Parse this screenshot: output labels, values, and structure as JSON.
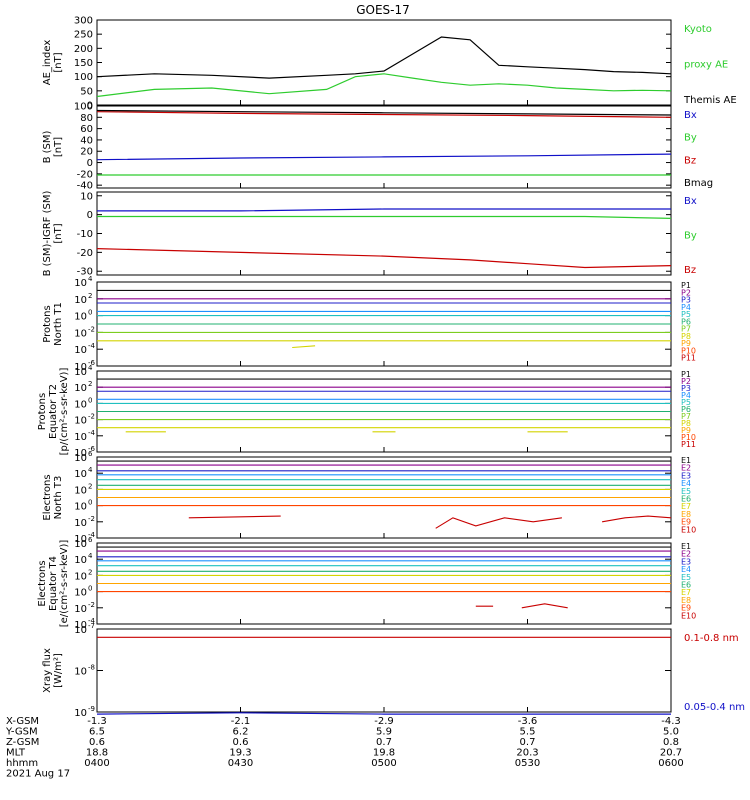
{
  "title": "GOES-17",
  "colors": {
    "black": "#000000",
    "green": "#2ecc2e",
    "blue": "#1010c8",
    "red": "#c80000",
    "proton_ch": [
      "#101010",
      "#8b008b",
      "#1e1ec8",
      "#1e90ff",
      "#20c0c0",
      "#20b070",
      "#7ccd20",
      "#d4d400",
      "#ffa500",
      "#ff4500",
      "#c80000",
      "#8b0000"
    ],
    "electron_ch": [
      "#101010",
      "#8b008b",
      "#1e1ec8",
      "#1e90ff",
      "#20c0c0",
      "#20b070",
      "#d4d400",
      "#ffa500",
      "#ff4500",
      "#c80000"
    ]
  },
  "chart_data": [
    {
      "type": "line",
      "ylabel": [
        "AE_index",
        "[nT]"
      ],
      "ylim": [
        0,
        300
      ],
      "yticks": [
        "300",
        "250",
        "200",
        "150",
        "100",
        "50",
        "0"
      ],
      "x": [
        0,
        0.1,
        0.2,
        0.3,
        0.4,
        0.45,
        0.5,
        0.55,
        0.6,
        0.65,
        0.7,
        0.75,
        0.8,
        0.85,
        0.9,
        0.95,
        1
      ],
      "series": [
        {
          "name": "Themis AE",
          "color": "black",
          "values": [
            100,
            110,
            105,
            95,
            105,
            110,
            120,
            180,
            240,
            230,
            140,
            135,
            130,
            125,
            118,
            115,
            110
          ]
        },
        {
          "name": "Kyoto proxy AE",
          "color": "green",
          "values": [
            30,
            55,
            60,
            40,
            55,
            100,
            110,
            95,
            80,
            70,
            75,
            70,
            60,
            55,
            50,
            52,
            50
          ]
        }
      ],
      "legend": [
        {
          "text": "Kyoto",
          "color": "green"
        },
        {
          "text": "proxy AE",
          "color": "green"
        },
        {
          "text": "Themis AE",
          "color": "black"
        }
      ]
    },
    {
      "type": "line",
      "ylabel": [
        "B (SM)",
        "[nT]"
      ],
      "ylim": [
        -45,
        100
      ],
      "yticks": [
        "100",
        "80",
        "60",
        "40",
        "20",
        "0",
        "-20",
        "-40"
      ],
      "x": [
        0,
        0.25,
        0.5,
        0.75,
        1
      ],
      "series": [
        {
          "name": "Bx",
          "color": "blue",
          "values": [
            5,
            8,
            10,
            12,
            15
          ]
        },
        {
          "name": "By",
          "color": "green",
          "values": [
            -22,
            -22,
            -22,
            -22,
            -22
          ]
        },
        {
          "name": "Bz",
          "color": "red",
          "values": [
            90,
            87,
            85,
            83,
            80
          ]
        },
        {
          "name": "Bmag",
          "color": "black",
          "values": [
            92,
            90,
            88,
            86,
            84
          ]
        }
      ],
      "legend": [
        {
          "text": "Bx",
          "color": "blue"
        },
        {
          "text": "By",
          "color": "green"
        },
        {
          "text": "Bz",
          "color": "red"
        },
        {
          "text": "Bmag",
          "color": "black"
        }
      ]
    },
    {
      "type": "line",
      "ylabel": [
        "B (SM)-IGRF (SM)",
        "[nT]"
      ],
      "ylim": [
        -32,
        12
      ],
      "yticks": [
        "10",
        "0",
        "-10",
        "-20",
        "-30"
      ],
      "x": [
        0,
        0.25,
        0.5,
        0.65,
        0.75,
        0.85,
        1
      ],
      "series": [
        {
          "name": "Bx",
          "color": "blue",
          "values": [
            2,
            2,
            3,
            3,
            3,
            3,
            3
          ]
        },
        {
          "name": "By",
          "color": "green",
          "values": [
            -1,
            -1,
            -1,
            -1,
            -1,
            -1,
            -2
          ]
        },
        {
          "name": "Bz",
          "color": "red",
          "values": [
            -18,
            -20,
            -22,
            -24,
            -26,
            -28,
            -27
          ]
        }
      ],
      "legend": [
        {
          "text": "Bx",
          "color": "blue"
        },
        {
          "text": "By",
          "color": "green"
        },
        {
          "text": "Bz",
          "color": "red"
        }
      ]
    },
    {
      "type": "line",
      "log": true,
      "ylabel": [
        "Protons",
        "North T1"
      ],
      "ylim_log": [
        -6,
        4
      ],
      "ytick_exp": [
        4,
        2,
        0,
        -2,
        -4,
        -6
      ],
      "channels": [
        "P1",
        "P2",
        "P3",
        "P4",
        "P5",
        "P6",
        "P7",
        "P8",
        "P9",
        "P10",
        "P11"
      ],
      "channel_log_levels": [
        3,
        2,
        1.5,
        0.5,
        0,
        -1,
        -2,
        -3
      ],
      "segments": [
        {
          "x": [
            0.34,
            0.38
          ],
          "log": [
            -3.8,
            -3.6
          ],
          "channel": 7
        }
      ]
    },
    {
      "type": "line",
      "log": true,
      "ylabel": [
        "Protons",
        "Equator T2",
        "[p/(cm²-s-sr-keV)]"
      ],
      "ylim_log": [
        -6,
        4
      ],
      "ytick_exp": [
        4,
        2,
        0,
        -2,
        -4,
        -6
      ],
      "channels": [
        "P1",
        "P2",
        "P3",
        "P4",
        "P5",
        "P6",
        "P7",
        "P8",
        "P9",
        "P10",
        "P11"
      ],
      "channel_log_levels": [
        3,
        2,
        1.5,
        0.5,
        0,
        -1,
        -2,
        -3
      ],
      "segments": [
        {
          "x": [
            0.05,
            0.12
          ],
          "log": [
            -3.5,
            -3.5
          ],
          "channel": 7
        },
        {
          "x": [
            0.48,
            0.52
          ],
          "log": [
            -3.5,
            -3.5
          ],
          "channel": 7
        },
        {
          "x": [
            0.75,
            0.82
          ],
          "log": [
            -3.5,
            -3.5
          ],
          "channel": 7
        }
      ]
    },
    {
      "type": "line",
      "log": true,
      "ylabel": [
        "Electrons",
        "North T3"
      ],
      "ylim_log": [
        -4,
        6
      ],
      "ytick_exp": [
        6,
        4,
        2,
        0,
        -2,
        -4
      ],
      "channels": [
        "E1",
        "E2",
        "E3",
        "E4",
        "E5",
        "E6",
        "E7",
        "E8",
        "E9",
        "E10"
      ],
      "channel_log_levels": [
        5.5,
        5,
        4.3,
        3.8,
        3.2,
        2.5,
        2,
        1,
        0
      ],
      "segments": [
        {
          "x": [
            0.16,
            0.32
          ],
          "log": [
            -1.5,
            -1.3
          ],
          "channel": 9
        },
        {
          "x": [
            0.59,
            0.62,
            0.66,
            0.71,
            0.76,
            0.81
          ],
          "log": [
            -2.8,
            -1.5,
            -2.5,
            -1.5,
            -2,
            -1.5
          ],
          "channel": 9
        },
        {
          "x": [
            0.88,
            0.92,
            0.96,
            1
          ],
          "log": [
            -2,
            -1.5,
            -1.3,
            -1.5
          ],
          "channel": 9
        }
      ]
    },
    {
      "type": "line",
      "log": true,
      "ylabel": [
        "Electrons",
        "Equator T4",
        "[e/(cm²-s-sr-keV)]"
      ],
      "ylim_log": [
        -4,
        6
      ],
      "ytick_exp": [
        6,
        4,
        2,
        0,
        -2,
        -4
      ],
      "channels": [
        "E1",
        "E2",
        "E3",
        "E4",
        "E5",
        "E6",
        "E7",
        "E8",
        "E9",
        "E10"
      ],
      "channel_log_levels": [
        5.5,
        5,
        4.3,
        3.8,
        3.2,
        2.5,
        2,
        1,
        0
      ],
      "segments": [
        {
          "x": [
            0.66,
            0.69
          ],
          "log": [
            -1.8,
            -1.8
          ],
          "channel": 9
        },
        {
          "x": [
            0.74,
            0.78,
            0.82
          ],
          "log": [
            -2,
            -1.5,
            -2
          ],
          "channel": 9
        }
      ]
    },
    {
      "type": "line",
      "log": true,
      "ylabel": [
        "Xray flux",
        "[W/m²]"
      ],
      "ylim_log": [
        -9,
        -7
      ],
      "ytick_exp": [
        -7,
        -8,
        -9
      ],
      "x": [
        0,
        0.25,
        0.5,
        0.75,
        1
      ],
      "series": [
        {
          "name": "0.1-0.8 nm",
          "color": "red",
          "log_values": [
            -7.2,
            -7.2,
            -7.2,
            -7.2,
            -7.2
          ]
        },
        {
          "name": "0.05-0.4 nm",
          "color": "blue",
          "log_values": [
            -9.05,
            -9.02,
            -9.05,
            -9.05,
            -9.05
          ]
        }
      ],
      "legend": [
        {
          "text": "0.1-0.8 nm",
          "color": "red"
        },
        {
          "text": "0.05-0.4 nm",
          "color": "blue"
        }
      ]
    }
  ],
  "x_axis": {
    "columns": [
      {
        "X-GSM": "-1.3",
        "Y-GSM": "6.5",
        "Z-GSM": "0.6",
        "MLT": "18.8",
        "hhmm": "0400"
      },
      {
        "X-GSM": "-2.1",
        "Y-GSM": "6.2",
        "Z-GSM": "0.6",
        "MLT": "19.3",
        "hhmm": "0430"
      },
      {
        "X-GSM": "-2.9",
        "Y-GSM": "5.9",
        "Z-GSM": "0.7",
        "MLT": "19.8",
        "hhmm": "0500"
      },
      {
        "X-GSM": "-3.6",
        "Y-GSM": "5.5",
        "Z-GSM": "0.7",
        "MLT": "20.3",
        "hhmm": "0530"
      },
      {
        "X-GSM": "-4.3",
        "Y-GSM": "5.0",
        "Z-GSM": "0.8",
        "MLT": "20.7",
        "hhmm": "0600"
      }
    ],
    "row_labels": [
      "X-GSM",
      "Y-GSM",
      "Z-GSM",
      "MLT",
      "hhmm"
    ],
    "date": "2021 Aug 17"
  }
}
